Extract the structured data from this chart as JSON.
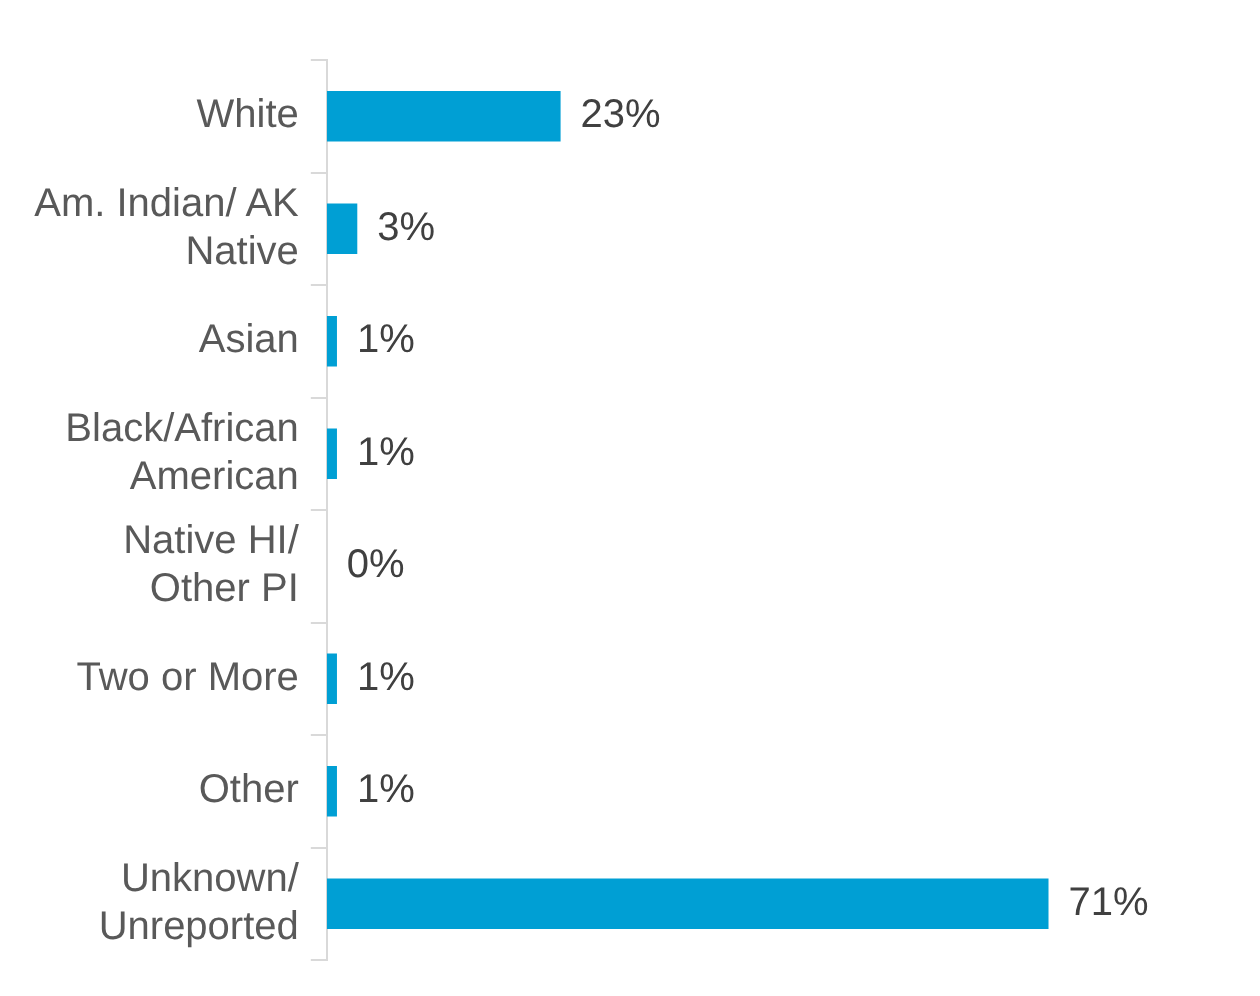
{
  "chart_data": {
    "type": "bar",
    "orientation": "horizontal",
    "categories": [
      "White",
      "Am. Indian/ AK Native",
      "Asian",
      "Black/African American",
      "Native HI/ Other PI",
      "Two or More",
      "Other",
      "Unknown/ Unreported"
    ],
    "values": [
      23,
      3,
      1,
      1,
      0,
      1,
      1,
      71
    ],
    "value_labels": [
      "23%",
      "3%",
      "1%",
      "1%",
      "0%",
      "1%",
      "1%",
      "71%"
    ],
    "color": "#009fd4",
    "grid": false,
    "legend": false
  }
}
